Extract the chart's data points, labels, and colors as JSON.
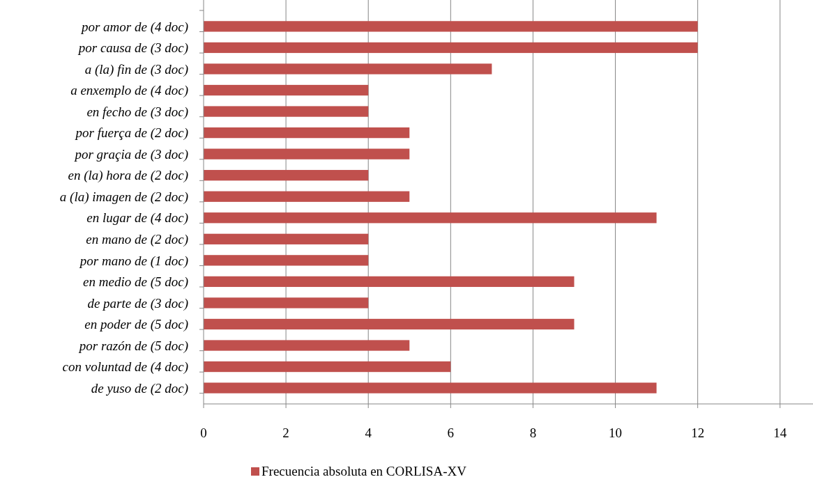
{
  "chart_data": {
    "type": "bar",
    "orientation": "horizontal",
    "categories": [
      "por amor de (4 doc)",
      "por causa de (3 doc)",
      "a (la) fin de (3 doc)",
      "a enxemplo de (4 doc)",
      "en fecho de (3 doc)",
      "por fuerça de (2 doc)",
      "por graçia de (3 doc)",
      "en (la) hora de (2 doc)",
      "a (la) imagen de (2 doc)",
      "en lugar de (4 doc)",
      "en mano de (2 doc)",
      "por mano de (1 doc)",
      "en medio de (5 doc)",
      "de parte de (3 doc)",
      "en poder de (5 doc)",
      "por razón de (5 doc)",
      "con voluntad de (4 doc)",
      "de yuso de (2 doc)"
    ],
    "series": [
      {
        "name": "Frecuencia absoluta en CORLISA-XV",
        "color": "#c0504d",
        "values": [
          12,
          12,
          7,
          4,
          4,
          5,
          5,
          4,
          5,
          11,
          4,
          4,
          9,
          4,
          9,
          5,
          6,
          11
        ]
      }
    ],
    "xlim": [
      0,
      14.8
    ],
    "xticks": [
      0,
      2,
      4,
      6,
      8,
      10,
      12,
      14
    ],
    "grid": "x",
    "legend": "bottom"
  }
}
